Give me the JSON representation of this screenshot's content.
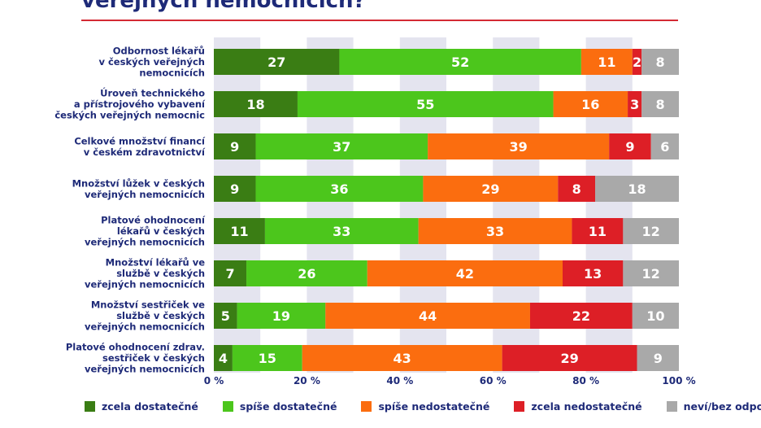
{
  "chart_data": {
    "type": "bar",
    "orientation": "horizontal",
    "stacked": true,
    "title": "veřejných nemocnicích?",
    "categories": [
      [
        "Odbornost lékařů",
        "v českých veřejných",
        "nemocnicích"
      ],
      [
        "Úroveň technického",
        "a přístrojového vybavení",
        "českých veřejných nemocnic"
      ],
      [
        "Celkové množství financí",
        "v českém zdravotnictví"
      ],
      [
        "Množství lůžek v českých",
        "veřejných nemocnicích"
      ],
      [
        "Platové ohodnocení",
        "lékařů v českých",
        "veřejných nemocnicích"
      ],
      [
        "Množství lékařů ve",
        "službě v českých",
        "veřejných nemocnicích"
      ],
      [
        "Množství sestřiček ve",
        "službě v českých",
        "veřejných nemocnicích"
      ],
      [
        "Platové ohodnocení zdrav.",
        "sestřiček v českých",
        "veřejných nemocnicích"
      ]
    ],
    "series": [
      {
        "name": "zcela dostatečné",
        "color": "#3a7d14",
        "values": [
          27,
          18,
          9,
          9,
          11,
          7,
          5,
          4
        ]
      },
      {
        "name": "spíše dostatečné",
        "color": "#4cc61c",
        "values": [
          52,
          55,
          37,
          36,
          33,
          26,
          19,
          15
        ]
      },
      {
        "name": "spíše nedostatečné",
        "color": "#fb6d0f",
        "values": [
          11,
          16,
          39,
          29,
          33,
          42,
          44,
          43
        ]
      },
      {
        "name": "zcela nedostatečné",
        "color": "#dd1f26",
        "values": [
          2,
          3,
          9,
          8,
          11,
          13,
          22,
          29
        ]
      },
      {
        "name": "neví/bez odpovědi",
        "color": "#a9a9a9",
        "values": [
          8,
          8,
          6,
          18,
          12,
          12,
          10,
          9
        ]
      }
    ],
    "xlim": [
      0,
      100
    ],
    "xticks": [
      "0 %",
      "20 %",
      "40 %",
      "60 %",
      "80 %",
      "100 %"
    ],
    "legend_position": "bottom"
  },
  "colors": {
    "title": "#1e2a78",
    "title_rule": "#d42a34",
    "grid_band": "#e4e4ef"
  }
}
